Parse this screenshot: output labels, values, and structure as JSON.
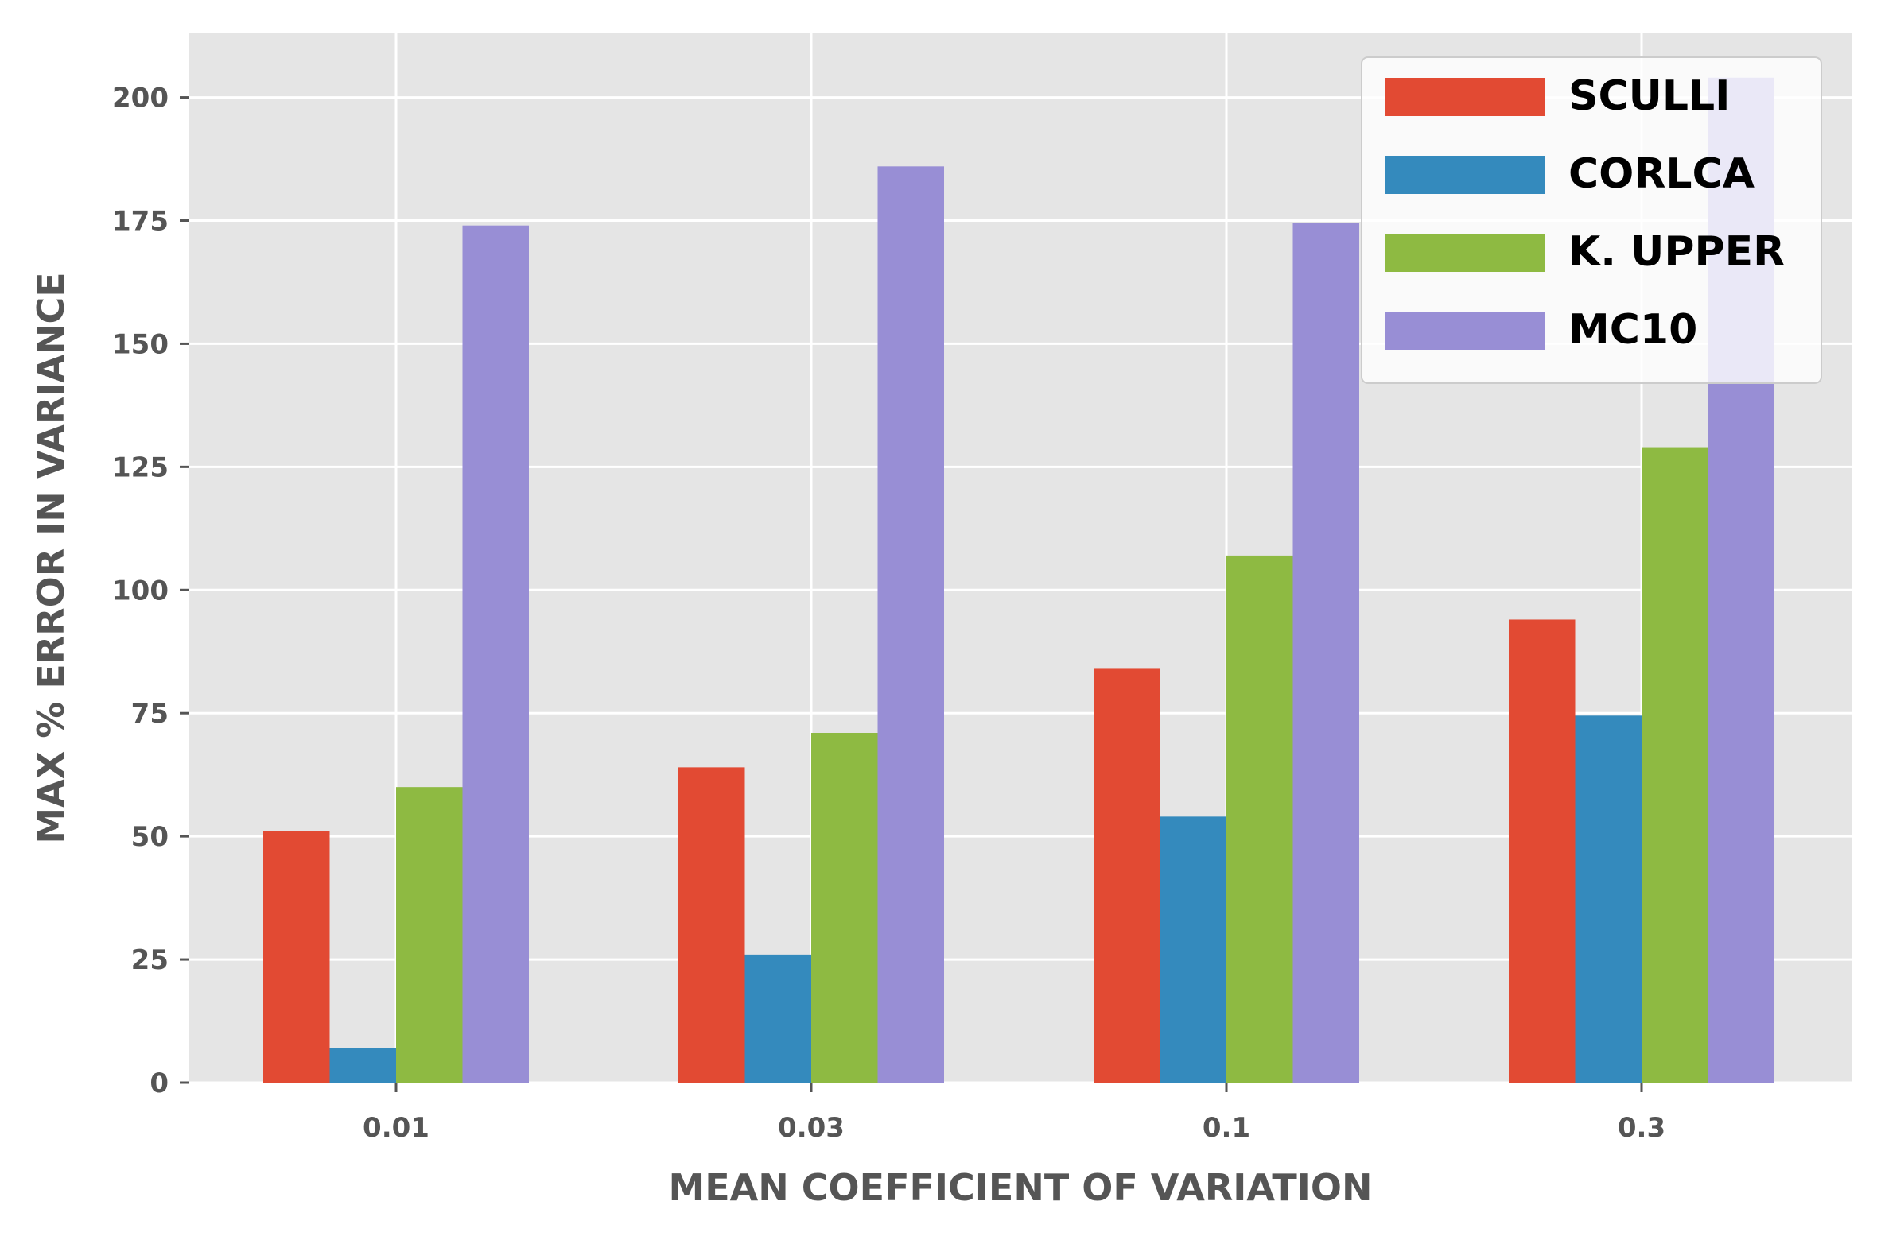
{
  "chart_data": {
    "type": "bar",
    "categories": [
      "0.01",
      "0.03",
      "0.1",
      "0.3"
    ],
    "series": [
      {
        "name": "SCULLI",
        "values": [
          51,
          64,
          84,
          94
        ],
        "color": "#E24A33"
      },
      {
        "name": "CORLCA",
        "values": [
          7,
          26,
          54,
          74.5
        ],
        "color": "#348ABD"
      },
      {
        "name": "K. UPPER",
        "values": [
          60,
          71,
          107,
          129
        ],
        "color": "#8EBA42"
      },
      {
        "name": "MC10",
        "values": [
          174,
          186,
          174.5,
          204
        ],
        "color": "#988ED5"
      }
    ],
    "title": "",
    "xlabel": "MEAN COEFFICIENT OF VARIATION",
    "ylabel": "MAX % ERROR IN VARIANCE",
    "ylim": [
      0,
      213
    ],
    "yticks": [
      0,
      25,
      50,
      75,
      100,
      125,
      150,
      175,
      200
    ],
    "grid": true,
    "legend_position": "top-right",
    "background_color": "#E5E5E5",
    "grid_color": "#FFFFFF"
  }
}
